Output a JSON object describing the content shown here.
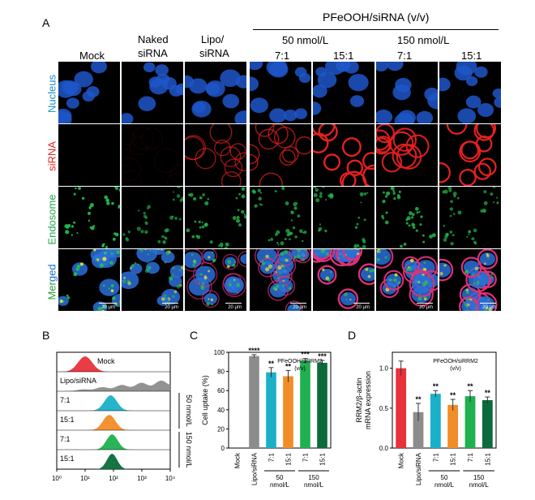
{
  "panelA": {
    "letter": "A",
    "header_group": "PFeOOH/siRNA  (v/v)",
    "conc_50": "50 nmol/L",
    "conc_150": "150 nmol/L",
    "columns": [
      "Mock",
      "Naked siRNA",
      "Lipo/ siRNA",
      "7:1",
      "15:1",
      "7:1",
      "15:1"
    ],
    "col_mock": "Mock",
    "col_naked_1": "Naked",
    "col_naked_2": "siRNA",
    "col_lipo_1": "Lipo/",
    "col_lipo_2": "siRNA",
    "ratio_a": "7:1",
    "ratio_b": "15:1",
    "rows": {
      "nucleus": "Nucleus",
      "sirna": "siRNA",
      "endosome": "Endosome",
      "merged_a": "Mer",
      "merged_b": "ged"
    },
    "scale_bar": "20 μm",
    "colors": {
      "nucleus": "#1a5fd1",
      "sirna": "#e8231f",
      "endosome": "#1fa84d",
      "merged_a": "#2a9a3a",
      "merged_b": "#1a73c8"
    }
  },
  "panelB": {
    "letter": "B",
    "rows": [
      "Mock",
      "Lipo/siRNA",
      "7:1",
      "15:1",
      "7:1",
      "15:1"
    ],
    "bracket_50": "50 nmol/L",
    "bracket_150": "150 nmol/L",
    "xticks": [
      "10⁰",
      "10¹",
      "10²",
      "10³",
      "10⁴"
    ],
    "colors": [
      "#e8313b",
      "#8c8c8c",
      "#1ab0c8",
      "#f28c28",
      "#1fb04f",
      "#0b6b3a"
    ]
  },
  "panelC": {
    "letter": "C",
    "chart_data": {
      "type": "bar",
      "categories": [
        "Mock",
        "Lipo/siRNA",
        "7:1",
        "15:1",
        "7:1",
        "15:1"
      ],
      "values": [
        0,
        96,
        79,
        75,
        91,
        89
      ],
      "errors": [
        0,
        1.5,
        5,
        6,
        2.5,
        2.5
      ],
      "significance": [
        "",
        "****",
        "**",
        "**",
        "***",
        "***"
      ],
      "ylabel": "Cell uptake (%)",
      "annotation": "PFeOOH/siRRM2 (v/v)",
      "ylim": [
        0,
        100
      ],
      "yticks": [
        0,
        20,
        40,
        60,
        80,
        100
      ],
      "group_50": "50 nmol/L",
      "group_150": "150 nmol/L",
      "colors": [
        "#ffffff",
        "#8c8c8c",
        "#1ab0c8",
        "#f28c28",
        "#1fb04f",
        "#0b6b3a"
      ]
    }
  },
  "panelD": {
    "letter": "D",
    "chart_data": {
      "type": "bar",
      "categories": [
        "Mock",
        "Lipo/siRNA",
        "7:1",
        "15:1",
        "7:1",
        "15:1"
      ],
      "values": [
        1.0,
        0.45,
        0.68,
        0.54,
        0.65,
        0.6
      ],
      "errors": [
        0.09,
        0.11,
        0.04,
        0.07,
        0.07,
        0.04
      ],
      "significance": [
        "",
        "**",
        "**",
        "**",
        "**",
        "**"
      ],
      "ylabel_1": "RRM2/β-actin",
      "ylabel_2": "mRNA expression",
      "annotation": "PFeOOH/siRRM2 (v/v)",
      "ylim": [
        0,
        1.2
      ],
      "yticks": [
        "0.0",
        "0.5",
        "1.0"
      ],
      "ytick_values": [
        0,
        0.5,
        1.0
      ],
      "group_50": "50 nmol/L",
      "group_150": "150 nmol/L",
      "colors": [
        "#e8313b",
        "#8c8c8c",
        "#1ab0c8",
        "#f28c28",
        "#1fb04f",
        "#0b6b3a"
      ]
    }
  }
}
